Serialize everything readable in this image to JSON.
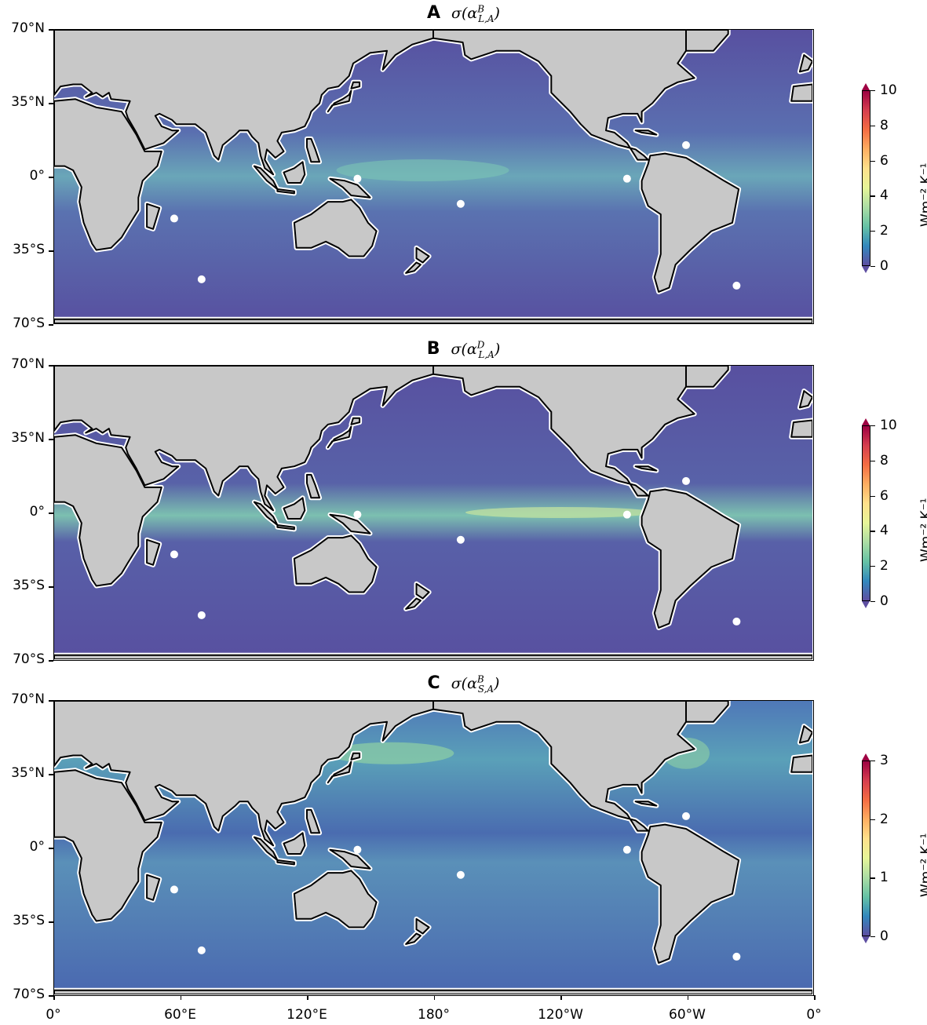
{
  "panels": [
    {
      "letter": "A",
      "symbol": "σ(α",
      "sup": "B",
      "sub": "L,A",
      "close": ")",
      "colorbar": {
        "ticks": [
          "10",
          "8",
          "6",
          "4",
          "2",
          "0"
        ],
        "unit": "Wm⁻² K⁻¹"
      }
    },
    {
      "letter": "B",
      "symbol": "σ(α",
      "sup": "D",
      "sub": "L,A",
      "close": ")",
      "colorbar": {
        "ticks": [
          "10",
          "8",
          "6",
          "4",
          "2",
          "0"
        ],
        "unit": "Wm⁻² K⁻¹"
      }
    },
    {
      "letter": "C",
      "symbol": "σ(α",
      "sup": "B",
      "sub": "S,A",
      "close": ")",
      "colorbar": {
        "ticks": [
          "3",
          "2",
          "1",
          "0"
        ],
        "unit": "Wm⁻² K⁻¹"
      }
    }
  ],
  "y_ticks": [
    "70°N",
    "35°N",
    "0°",
    "35°S",
    "70°S"
  ],
  "x_ticks": [
    "0°",
    "60°E",
    "120°E",
    "180°",
    "120°W",
    "60°W",
    "0°"
  ],
  "colors": {
    "land": "#c8c8c8",
    "ocean_low": "#5a53a0",
    "ocean_mid": "#3d7ab8",
    "ocean_high": "#8fd0a4",
    "colorbar_top": "#9e0142",
    "colorbar_bottom": "#5e4fa2"
  }
}
